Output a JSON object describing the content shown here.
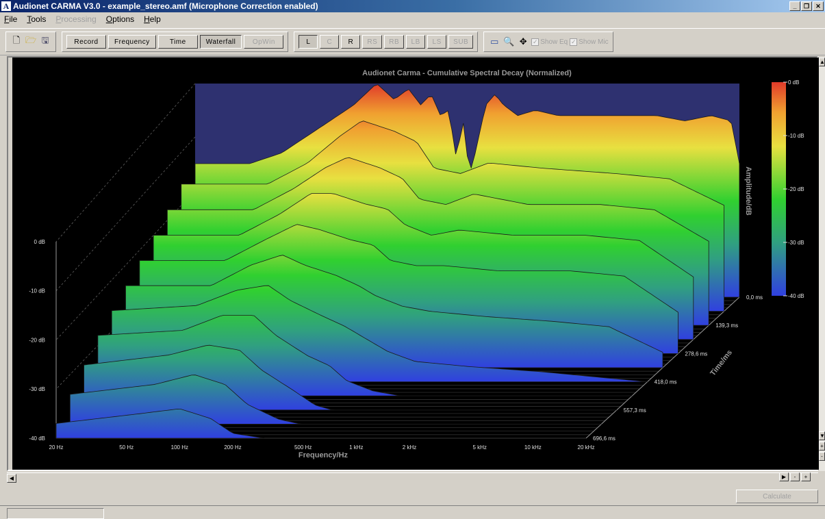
{
  "window": {
    "title": "Audionet CARMA V3.0 - example_stereo.amf (Microphone Correction enabled)",
    "app_icon_letter": "A"
  },
  "menu": [
    {
      "label": "File",
      "enabled": true
    },
    {
      "label": "Tools",
      "enabled": true
    },
    {
      "label": "Processing",
      "enabled": false
    },
    {
      "label": "Options",
      "enabled": true
    },
    {
      "label": "Help",
      "enabled": true
    }
  ],
  "toolbar": {
    "views": [
      {
        "label": "Record",
        "state": "normal"
      },
      {
        "label": "Frequency",
        "state": "normal"
      },
      {
        "label": "Time",
        "state": "normal"
      },
      {
        "label": "Waterfall",
        "state": "pressed"
      },
      {
        "label": "OpWin",
        "state": "disabled"
      }
    ],
    "channels": [
      {
        "label": "L",
        "state": "pressed"
      },
      {
        "label": "C",
        "state": "disabled"
      },
      {
        "label": "R",
        "state": "normal"
      },
      {
        "label": "RS",
        "state": "disabled"
      },
      {
        "label": "RB",
        "state": "disabled"
      },
      {
        "label": "LB",
        "state": "disabled"
      },
      {
        "label": "LS",
        "state": "disabled"
      },
      {
        "label": "SUB",
        "state": "disabled"
      }
    ],
    "show_eq_label": "Show Eq",
    "show_mic_label": "Show Mic"
  },
  "chart_data": {
    "type": "waterfall",
    "title": "Audionet Carma - Cumulative Spectral Decay (Normalized)",
    "xlabel": "Frequency/Hz",
    "ylabel": "Amplitude/dB",
    "zlabel": "Time/ms",
    "x_scale": "log",
    "x_ticks": [
      "20 Hz",
      "50 Hz",
      "100 Hz",
      "200 Hz",
      "500 Hz",
      "1 kHz",
      "2 kHz",
      "5 kHz",
      "10 kHz",
      "20 kHz"
    ],
    "x_tick_values": [
      20,
      50,
      100,
      200,
      500,
      1000,
      2000,
      5000,
      10000,
      20000
    ],
    "y_ticks": [
      "0 dB",
      "-10 dB",
      "-20 dB",
      "-30 dB",
      "-40 dB"
    ],
    "y_tick_values": [
      0,
      -10,
      -20,
      -30,
      -40
    ],
    "z_ticks": [
      "0,0 ms",
      "139,3 ms",
      "278,6 ms",
      "418,0 ms",
      "557,3 ms",
      "696,6 ms"
    ],
    "colorbar_ticks": [
      "0 dB",
      "-10 dB",
      "-20 dB",
      "-30 dB",
      "-40 dB"
    ],
    "slices": [
      {
        "time_ms": 0.0,
        "points": [
          [
            20,
            -15
          ],
          [
            40,
            -15
          ],
          [
            60,
            -13
          ],
          [
            100,
            -8
          ],
          [
            150,
            -4
          ],
          [
            200,
            0
          ],
          [
            250,
            -3
          ],
          [
            300,
            -1
          ],
          [
            350,
            -4
          ],
          [
            400,
            -2
          ],
          [
            450,
            -6
          ],
          [
            500,
            -5
          ],
          [
            550,
            -14
          ],
          [
            600,
            -7
          ],
          [
            650,
            -17
          ],
          [
            700,
            -13
          ],
          [
            800,
            -4
          ],
          [
            900,
            -2
          ],
          [
            1000,
            -4
          ],
          [
            1200,
            -6
          ],
          [
            1500,
            -5
          ],
          [
            2000,
            -6
          ],
          [
            3000,
            -6
          ],
          [
            5000,
            -6
          ],
          [
            7000,
            -6
          ],
          [
            10000,
            -7
          ],
          [
            14000,
            -6
          ],
          [
            18000,
            -7
          ],
          [
            20000,
            -15
          ]
        ]
      },
      {
        "time_ms": 69.7,
        "points": [
          [
            20,
            -16
          ],
          [
            60,
            -16
          ],
          [
            100,
            -12
          ],
          [
            150,
            -7
          ],
          [
            200,
            -4
          ],
          [
            300,
            -6
          ],
          [
            400,
            -8
          ],
          [
            500,
            -13
          ],
          [
            700,
            -14
          ],
          [
            1000,
            -12
          ],
          [
            2000,
            -13
          ],
          [
            5000,
            -14
          ],
          [
            10000,
            -15
          ],
          [
            20000,
            -20
          ]
        ]
      },
      {
        "time_ms": 139.3,
        "points": [
          [
            20,
            -18
          ],
          [
            60,
            -18
          ],
          [
            100,
            -14
          ],
          [
            150,
            -10
          ],
          [
            200,
            -8
          ],
          [
            300,
            -10
          ],
          [
            400,
            -12
          ],
          [
            500,
            -16
          ],
          [
            700,
            -17
          ],
          [
            1000,
            -15
          ],
          [
            2000,
            -17
          ],
          [
            5000,
            -17
          ],
          [
            10000,
            -18
          ],
          [
            20000,
            -24
          ]
        ]
      },
      {
        "time_ms": 209.0,
        "points": [
          [
            20,
            -20
          ],
          [
            60,
            -20
          ],
          [
            100,
            -16
          ],
          [
            150,
            -12
          ],
          [
            200,
            -12
          ],
          [
            300,
            -14
          ],
          [
            400,
            -15
          ],
          [
            500,
            -18
          ],
          [
            700,
            -20
          ],
          [
            1000,
            -19
          ],
          [
            2000,
            -20
          ],
          [
            5000,
            -20
          ],
          [
            10000,
            -21
          ],
          [
            20000,
            -28
          ]
        ]
      },
      {
        "time_ms": 278.6,
        "points": [
          [
            20,
            -22
          ],
          [
            60,
            -22
          ],
          [
            100,
            -18
          ],
          [
            150,
            -15
          ],
          [
            200,
            -16
          ],
          [
            300,
            -18
          ],
          [
            400,
            -19
          ],
          [
            500,
            -22
          ],
          [
            700,
            -23
          ],
          [
            1000,
            -23
          ],
          [
            2000,
            -24
          ],
          [
            5000,
            -24
          ],
          [
            10000,
            -25
          ],
          [
            20000,
            -32
          ]
        ]
      },
      {
        "time_ms": 348.3,
        "points": [
          [
            20,
            -24
          ],
          [
            60,
            -24
          ],
          [
            100,
            -20
          ],
          [
            150,
            -18
          ],
          [
            200,
            -20
          ],
          [
            300,
            -22
          ],
          [
            400,
            -24
          ],
          [
            500,
            -26
          ],
          [
            700,
            -28
          ],
          [
            1000,
            -29
          ],
          [
            2000,
            -30
          ],
          [
            5000,
            -31
          ],
          [
            10000,
            -32
          ],
          [
            20000,
            -37
          ]
        ]
      },
      {
        "time_ms": 418.0,
        "points": [
          [
            20,
            -26
          ],
          [
            60,
            -25
          ],
          [
            100,
            -22
          ],
          [
            150,
            -21
          ],
          [
            200,
            -24
          ],
          [
            300,
            -27
          ],
          [
            400,
            -29
          ],
          [
            500,
            -31
          ],
          [
            700,
            -34
          ],
          [
            1000,
            -36
          ],
          [
            2000,
            -37
          ],
          [
            5000,
            -38
          ],
          [
            10000,
            -39
          ],
          [
            20000,
            -40
          ]
        ]
      },
      {
        "time_ms": 487.6,
        "points": [
          [
            20,
            -28
          ],
          [
            60,
            -27
          ],
          [
            100,
            -24
          ],
          [
            150,
            -24
          ],
          [
            200,
            -28
          ],
          [
            300,
            -32
          ],
          [
            400,
            -34
          ],
          [
            500,
            -37
          ],
          [
            700,
            -39
          ],
          [
            1000,
            -40
          ],
          [
            20000,
            -40
          ]
        ]
      },
      {
        "time_ms": 557.3,
        "points": [
          [
            20,
            -31
          ],
          [
            60,
            -29
          ],
          [
            100,
            -27
          ],
          [
            150,
            -28
          ],
          [
            200,
            -32
          ],
          [
            300,
            -36
          ],
          [
            400,
            -39
          ],
          [
            500,
            -40
          ],
          [
            20000,
            -40
          ]
        ]
      },
      {
        "time_ms": 626.9,
        "points": [
          [
            20,
            -34
          ],
          [
            60,
            -32
          ],
          [
            100,
            -30
          ],
          [
            150,
            -32
          ],
          [
            200,
            -36
          ],
          [
            300,
            -39
          ],
          [
            400,
            -40
          ],
          [
            20000,
            -40
          ]
        ]
      },
      {
        "time_ms": 696.6,
        "points": [
          [
            20,
            -37
          ],
          [
            60,
            -35
          ],
          [
            100,
            -34
          ],
          [
            150,
            -36
          ],
          [
            200,
            -39
          ],
          [
            300,
            -40
          ],
          [
            20000,
            -40
          ]
        ]
      }
    ]
  }
}
